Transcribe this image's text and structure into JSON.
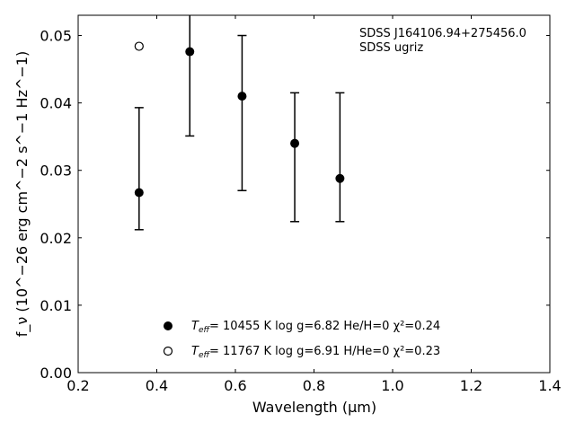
{
  "chart_data": {
    "type": "scatter",
    "title": "",
    "xlabel": "Wavelength (μm)",
    "ylabel": "f_ν (10^−26 erg cm^−2 s^−1 Hz^−1)",
    "xlim": [
      0.2,
      1.4
    ],
    "ylim": [
      0.0,
      0.053
    ],
    "xticks": [
      0.2,
      0.4,
      0.6,
      0.8,
      1.0,
      1.2,
      1.4
    ],
    "xtick_labels": [
      "0.2",
      "0.4",
      "0.6",
      "0.8",
      "1.0",
      "1.2",
      "1.4"
    ],
    "yticks": [
      0.0,
      0.01,
      0.02,
      0.03,
      0.04,
      0.05
    ],
    "ytick_labels": [
      "0.00",
      "0.01",
      "0.02",
      "0.03",
      "0.04",
      "0.05"
    ],
    "grid": false,
    "annotations": [
      "SDSS J164106.94+275456.0",
      "SDSS ugriz"
    ],
    "series": [
      {
        "marker": "filled-circle",
        "points": [
          {
            "x": 0.355,
            "y": 0.0267,
            "ylo": 0.0212,
            "yhi": 0.0393
          },
          {
            "x": 0.484,
            "y": 0.0476,
            "ylo": 0.0351,
            "yhi": 0.0532
          },
          {
            "x": 0.617,
            "y": 0.041,
            "ylo": 0.027,
            "yhi": 0.05
          },
          {
            "x": 0.751,
            "y": 0.034,
            "ylo": 0.0224,
            "yhi": 0.0415
          },
          {
            "x": 0.866,
            "y": 0.0288,
            "ylo": 0.0224,
            "yhi": 0.0415
          }
        ]
      },
      {
        "marker": "open-circle",
        "points": [
          {
            "x": 0.355,
            "y": 0.0484
          }
        ]
      }
    ],
    "legend": {
      "position": "lower-center",
      "entries": [
        {
          "marker": "filled-circle",
          "teff_label": "T",
          "teff_sub": "eff",
          "text": "= 10455 K  log g=6.82  He/H=0  χ²=0.24"
        },
        {
          "marker": "open-circle",
          "teff_label": "T",
          "teff_sub": "eff",
          "text": "= 11767 K  log g=6.91  H/He=0  χ²=0.23"
        }
      ]
    }
  }
}
